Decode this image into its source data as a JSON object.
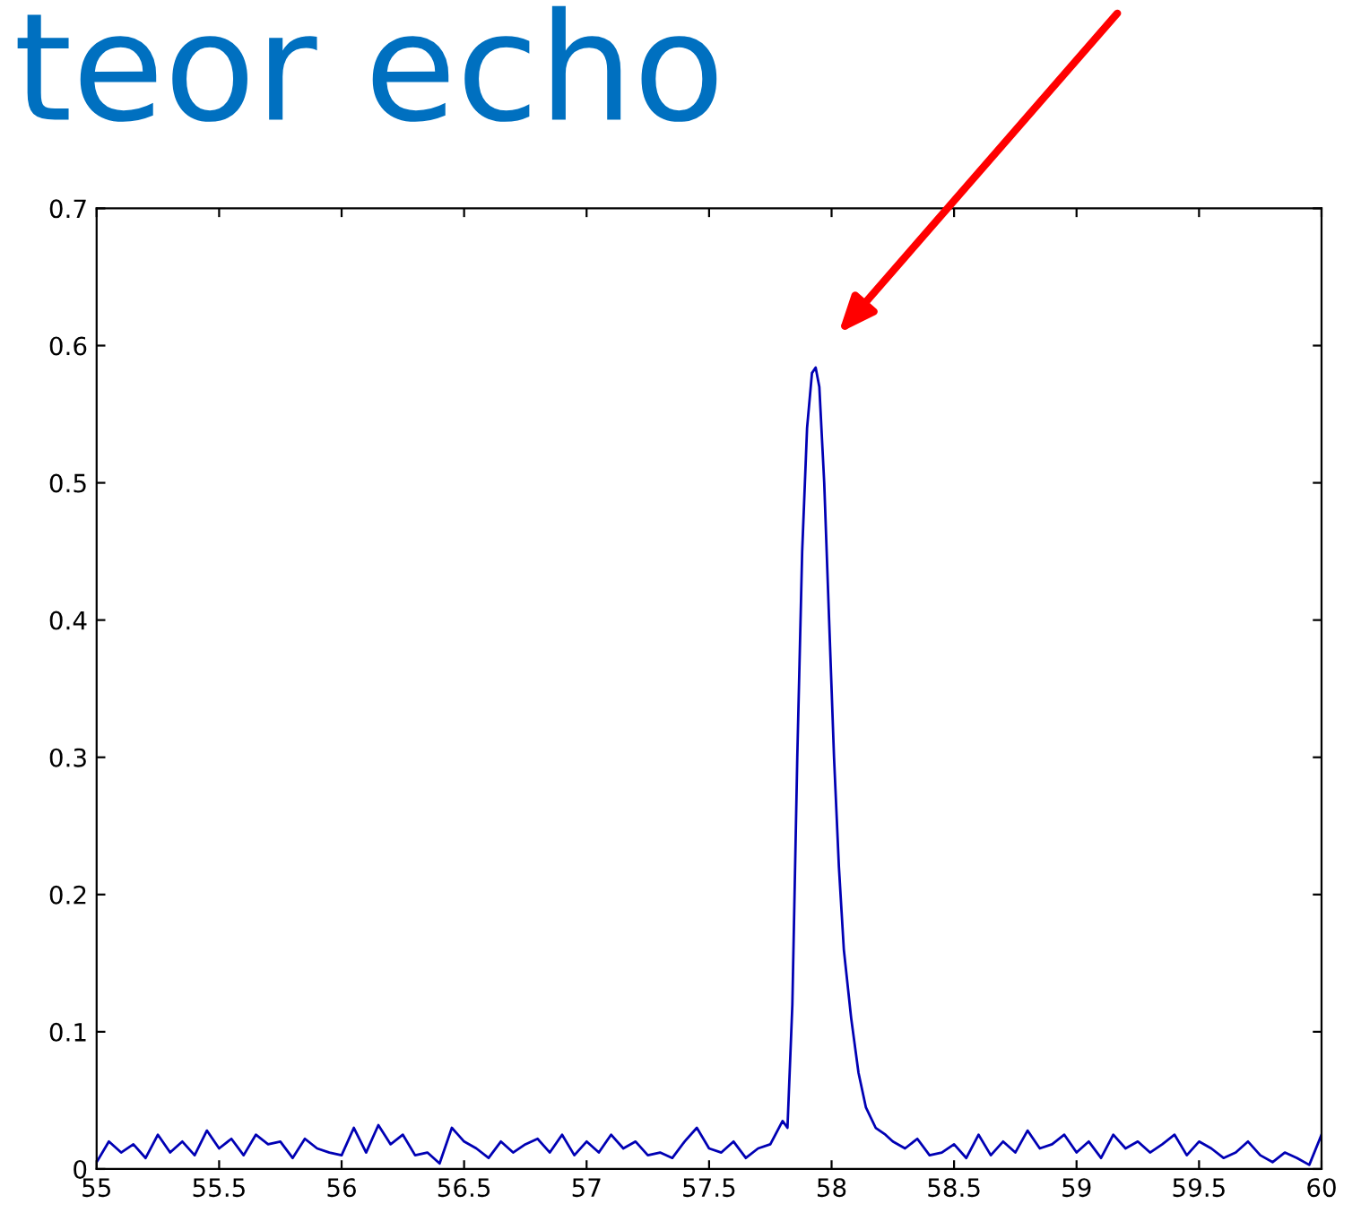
{
  "chart_data": {
    "type": "line",
    "title": "teor echo",
    "xlim": [
      55,
      60
    ],
    "ylim": [
      0,
      0.7
    ],
    "xticks": [
      55,
      55.5,
      56,
      56.5,
      57,
      57.5,
      58,
      58.5,
      59,
      59.5,
      60
    ],
    "yticks": [
      0,
      0.1,
      0.2,
      0.3,
      0.4,
      0.5,
      0.6,
      0.7
    ],
    "grid": false,
    "marker": "none",
    "line_style": "solid",
    "series": [
      {
        "color": "#0000b4",
        "x": [
          55.0,
          55.05,
          55.1,
          55.15,
          55.2,
          55.25,
          55.3,
          55.35,
          55.4,
          55.45,
          55.5,
          55.55,
          55.6,
          55.65,
          55.7,
          55.75,
          55.8,
          55.85,
          55.9,
          55.95,
          56.0,
          56.05,
          56.1,
          56.15,
          56.2,
          56.25,
          56.3,
          56.35,
          56.4,
          56.45,
          56.5,
          56.55,
          56.6,
          56.65,
          56.7,
          56.75,
          56.8,
          56.85,
          56.9,
          56.95,
          57.0,
          57.05,
          57.1,
          57.15,
          57.2,
          57.25,
          57.3,
          57.35,
          57.4,
          57.45,
          57.5,
          57.55,
          57.6,
          57.65,
          57.7,
          57.75,
          57.8,
          57.82,
          57.84,
          57.86,
          57.88,
          57.9,
          57.92,
          57.935,
          57.95,
          57.97,
          57.99,
          58.01,
          58.03,
          58.05,
          58.08,
          58.11,
          58.14,
          58.18,
          58.22,
          58.25,
          58.3,
          58.35,
          58.4,
          58.45,
          58.5,
          58.55,
          58.6,
          58.65,
          58.7,
          58.75,
          58.8,
          58.85,
          58.9,
          58.95,
          59.0,
          59.05,
          59.1,
          59.15,
          59.2,
          59.25,
          59.3,
          59.35,
          59.4,
          59.45,
          59.5,
          59.55,
          59.6,
          59.65,
          59.7,
          59.75,
          59.8,
          59.85,
          59.9,
          59.95,
          60.0
        ],
        "values": [
          0.005,
          0.02,
          0.012,
          0.018,
          0.008,
          0.025,
          0.012,
          0.02,
          0.01,
          0.028,
          0.015,
          0.022,
          0.01,
          0.025,
          0.018,
          0.02,
          0.008,
          0.022,
          0.015,
          0.012,
          0.01,
          0.03,
          0.012,
          0.032,
          0.018,
          0.025,
          0.01,
          0.012,
          0.004,
          0.03,
          0.02,
          0.015,
          0.008,
          0.02,
          0.012,
          0.018,
          0.022,
          0.012,
          0.025,
          0.01,
          0.02,
          0.012,
          0.025,
          0.015,
          0.02,
          0.01,
          0.012,
          0.008,
          0.02,
          0.03,
          0.015,
          0.012,
          0.02,
          0.008,
          0.015,
          0.018,
          0.035,
          0.03,
          0.12,
          0.3,
          0.45,
          0.54,
          0.58,
          0.584,
          0.57,
          0.5,
          0.4,
          0.3,
          0.22,
          0.16,
          0.11,
          0.07,
          0.045,
          0.03,
          0.025,
          0.02,
          0.015,
          0.022,
          0.01,
          0.012,
          0.018,
          0.008,
          0.025,
          0.01,
          0.02,
          0.012,
          0.028,
          0.015,
          0.018,
          0.025,
          0.012,
          0.02,
          0.008,
          0.025,
          0.015,
          0.02,
          0.012,
          0.018,
          0.025,
          0.01,
          0.02,
          0.015,
          0.008,
          0.012,
          0.02,
          0.01,
          0.005,
          0.012,
          0.008,
          0.003,
          0.025
        ]
      }
    ]
  }
}
